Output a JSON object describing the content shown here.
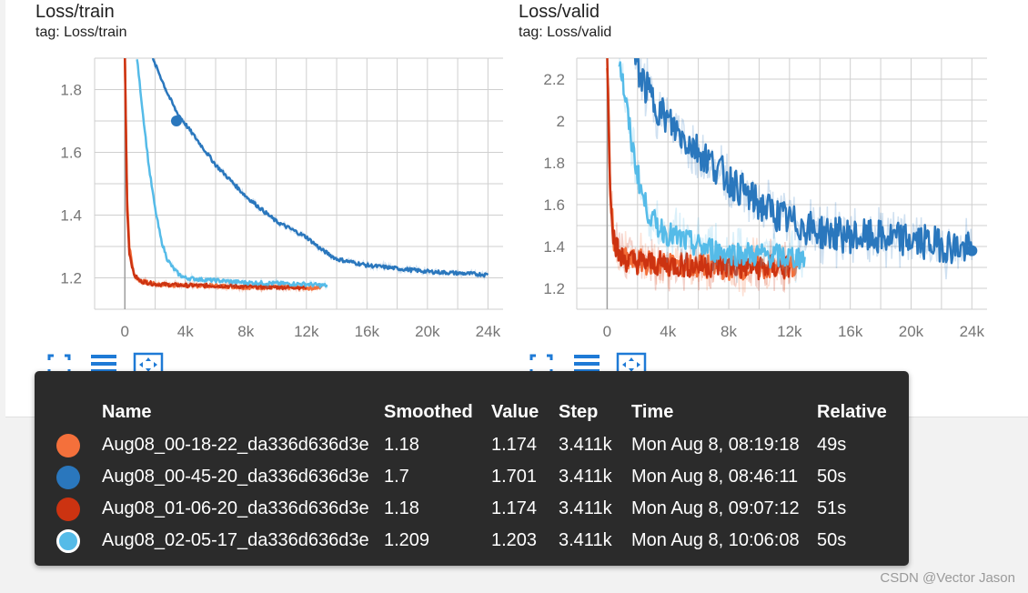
{
  "panels": [
    {
      "title": "Loss/train",
      "tag": "tag: Loss/train",
      "y_ticks": [
        "1.8",
        "1.6",
        "1.4",
        "1.2"
      ],
      "x_ticks": [
        "0",
        "4k",
        "8k",
        "12k",
        "16k",
        "20k",
        "24k"
      ]
    },
    {
      "title": "Loss/valid",
      "tag": "tag: Loss/valid",
      "y_ticks": [
        "2.2",
        "2",
        "1.8",
        "1.6",
        "1.4",
        "1.2"
      ],
      "x_ticks": [
        "0",
        "4k",
        "8k",
        "12k",
        "16k",
        "20k",
        "24k"
      ]
    }
  ],
  "toolbar_icons": [
    "fullscreen-icon",
    "toggle-log-scale-icon",
    "fit-domain-icon"
  ],
  "tooltip": {
    "headers": [
      "Name",
      "Smoothed",
      "Value",
      "Step",
      "Time",
      "Relative"
    ],
    "rows": [
      {
        "name": "Aug08_00-18-22_da336d636d3e",
        "smoothed": "1.18",
        "value": "1.174",
        "step": "3.411k",
        "time": "Mon Aug 8, 08:19:18",
        "relative": "49s",
        "color": "#f4703b"
      },
      {
        "name": "Aug08_00-45-20_da336d636d3e",
        "smoothed": "1.7",
        "value": "1.701",
        "step": "3.411k",
        "time": "Mon Aug 8, 08:46:11",
        "relative": "50s",
        "color": "#2a77bd"
      },
      {
        "name": "Aug08_01-06-20_da336d636d3e",
        "smoothed": "1.18",
        "value": "1.174",
        "step": "3.411k",
        "time": "Mon Aug 8, 09:07:12",
        "relative": "51s",
        "color": "#cc3311"
      },
      {
        "name": "Aug08_02-05-17_da336d636d3e",
        "smoothed": "1.209",
        "value": "1.203",
        "step": "3.411k",
        "time": "Mon Aug 8, 10:06:08",
        "relative": "50s",
        "color": "#55bbe8"
      }
    ]
  },
  "watermark": "CSDN @Vector Jason",
  "chart_data": [
    {
      "type": "line",
      "title": "Loss/train",
      "xlim": [
        -2000,
        25000
      ],
      "ylim": [
        1.1,
        1.9
      ],
      "grid": true,
      "series": [
        {
          "color": "#f4703b",
          "x": [
            0,
            150,
            300,
            600,
            1000,
            2000,
            4000,
            6000,
            8000,
            10000,
            12000,
            13000
          ],
          "y": [
            1.9,
            1.45,
            1.3,
            1.21,
            1.19,
            1.18,
            1.175,
            1.175,
            1.17,
            1.17,
            1.168,
            1.168
          ]
        },
        {
          "color": "#cc3311",
          "x": [
            0,
            150,
            300,
            600,
            1000,
            2000,
            4000,
            6000,
            8000,
            10000,
            12000
          ],
          "y": [
            1.9,
            1.42,
            1.28,
            1.21,
            1.19,
            1.18,
            1.176,
            1.175,
            1.172,
            1.17,
            1.17
          ]
        },
        {
          "color": "#55bbe8",
          "x": [
            800,
            1200,
            1600,
            2000,
            2400,
            2800,
            3200,
            3600,
            4000,
            5000,
            8000,
            12000,
            13400
          ],
          "y": [
            1.9,
            1.72,
            1.55,
            1.42,
            1.32,
            1.26,
            1.23,
            1.21,
            1.2,
            1.195,
            1.185,
            1.18,
            1.175
          ]
        },
        {
          "color": "#2a77bd",
          "x": [
            1800,
            2200,
            2800,
            3400,
            4000,
            6000,
            8000,
            10000,
            12000,
            13000,
            14000,
            16000,
            18000,
            20000,
            22000,
            24000
          ],
          "y": [
            1.9,
            1.86,
            1.79,
            1.73,
            1.69,
            1.56,
            1.46,
            1.38,
            1.33,
            1.29,
            1.26,
            1.24,
            1.23,
            1.22,
            1.215,
            1.21
          ]
        }
      ]
    },
    {
      "type": "line",
      "title": "Loss/valid",
      "xlim": [
        -2000,
        25000
      ],
      "ylim": [
        1.1,
        2.3
      ],
      "grid": true,
      "series": [
        {
          "color": "#f4703b",
          "x": [
            0,
            200,
            400,
            800,
            1500,
            3000,
            5000,
            7000,
            9000,
            11000,
            12500
          ],
          "y": [
            2.3,
            1.7,
            1.45,
            1.34,
            1.33,
            1.32,
            1.31,
            1.3,
            1.3,
            1.3,
            1.3
          ]
        },
        {
          "color": "#cc3311",
          "x": [
            0,
            200,
            400,
            800,
            1500,
            3000,
            5000,
            7000,
            9000,
            11000,
            12000
          ],
          "y": [
            2.3,
            1.72,
            1.46,
            1.35,
            1.33,
            1.32,
            1.31,
            1.31,
            1.3,
            1.3,
            1.3
          ]
        },
        {
          "color": "#55bbe8",
          "x": [
            800,
            1200,
            1600,
            2000,
            2400,
            3000,
            4000,
            6000,
            8000,
            10000,
            12000,
            13000
          ],
          "y": [
            2.3,
            2.1,
            1.9,
            1.75,
            1.62,
            1.52,
            1.46,
            1.4,
            1.37,
            1.36,
            1.35,
            1.35
          ]
        },
        {
          "color": "#2a77bd",
          "x": [
            1800,
            2400,
            3000,
            4000,
            5000,
            6000,
            8000,
            10000,
            12000,
            14000,
            16000,
            18000,
            20000,
            22000,
            24000
          ],
          "y": [
            2.3,
            2.18,
            2.1,
            2.0,
            1.92,
            1.86,
            1.72,
            1.6,
            1.52,
            1.47,
            1.45,
            1.44,
            1.43,
            1.41,
            1.38
          ]
        }
      ]
    }
  ]
}
